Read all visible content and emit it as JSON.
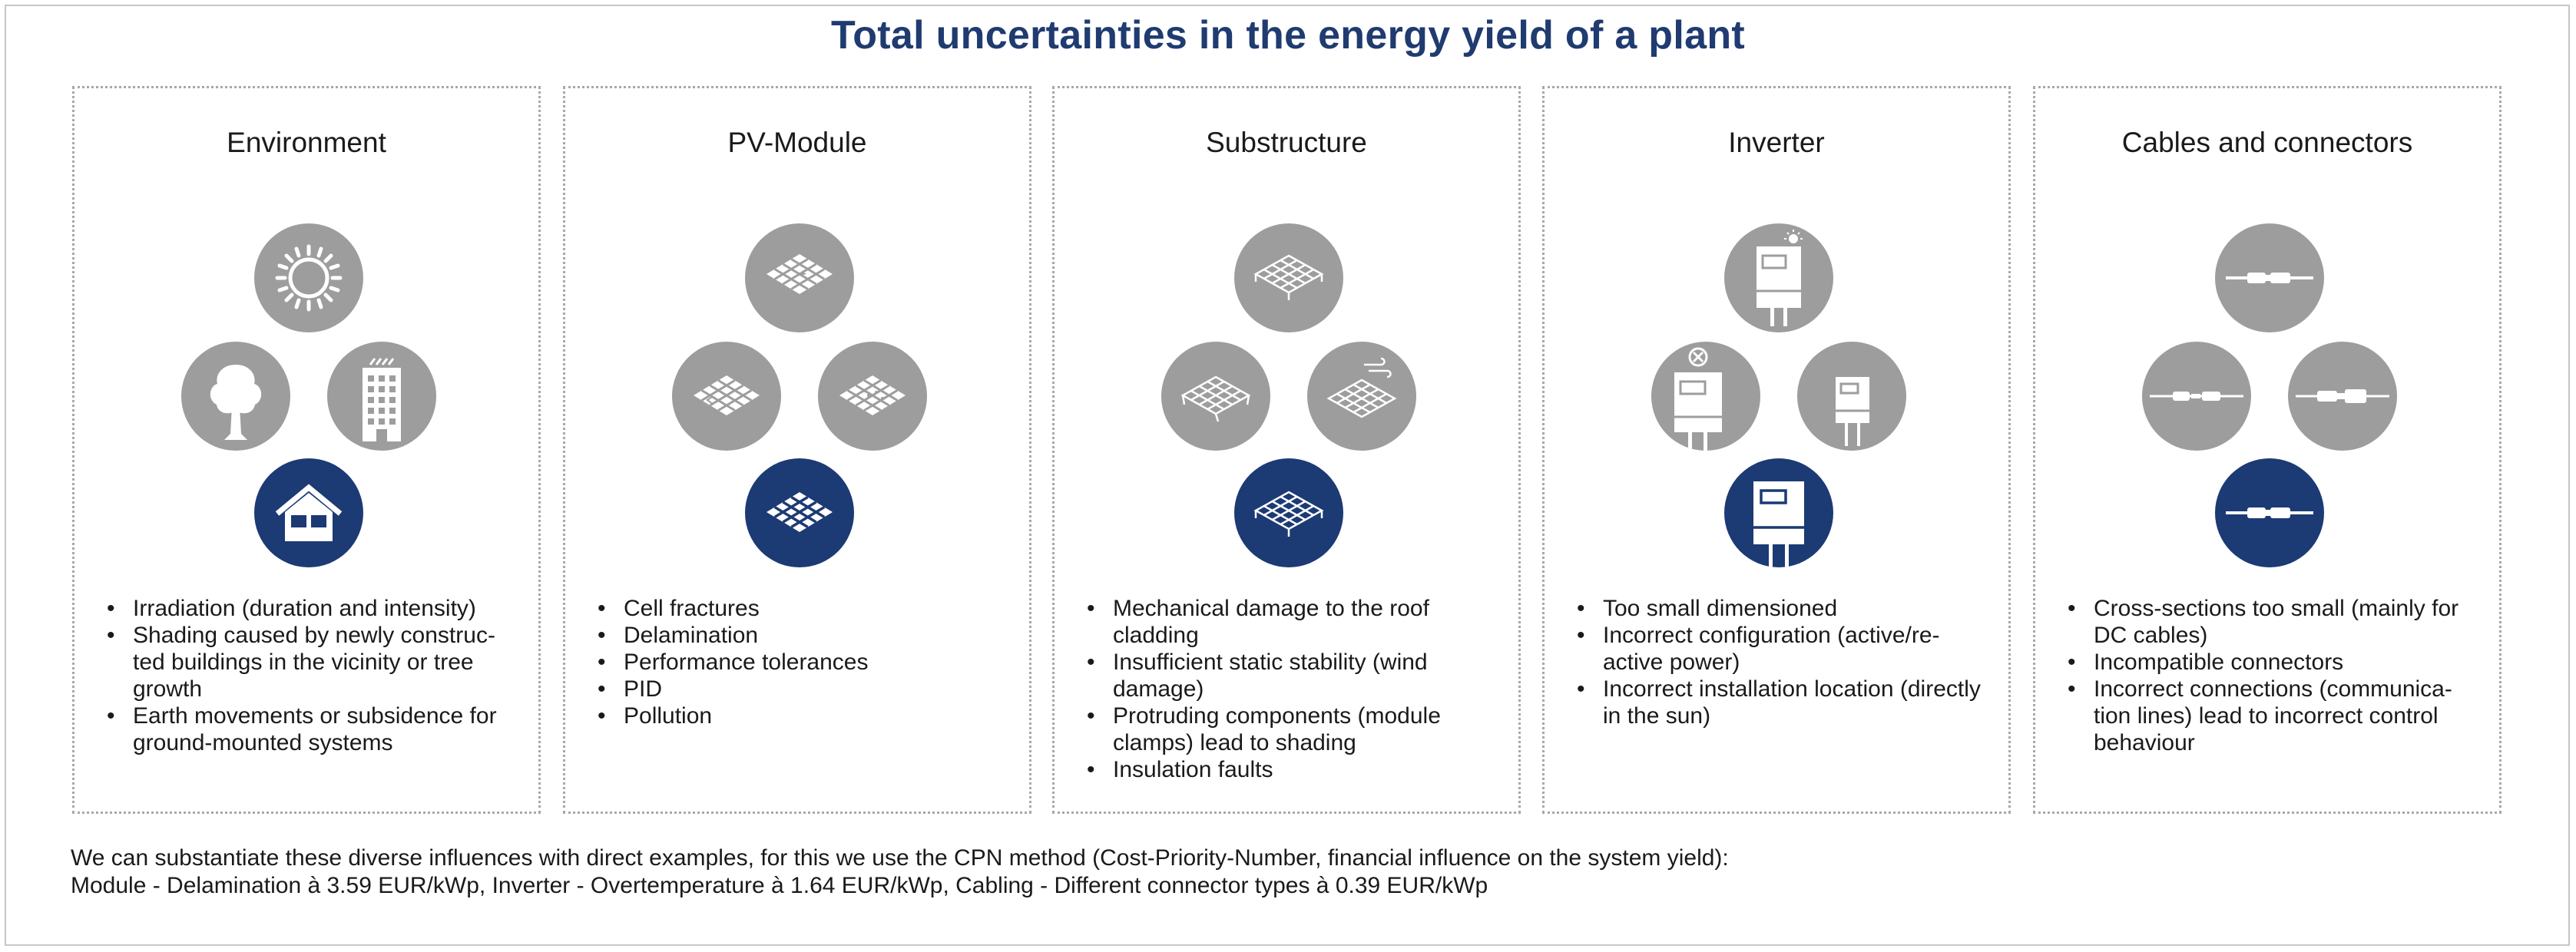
{
  "title": "Total uncertainties in the energy yield of a plant",
  "colors": {
    "title": "#1f3b70",
    "icon_gray": "#9d9d9d",
    "icon_blue": "#1c3a74"
  },
  "panels": [
    {
      "heading": "Environment",
      "icons": {
        "top": "sun-icon",
        "left": "tree-icon",
        "right": "building-icon",
        "bottom": "house-icon"
      },
      "bullets": [
        "Irradiation (duration and intensity)",
        "Shading caused by newly construc-ted buildings in the vicinity or tree growth",
        "Earth movements or subsidence for ground-mounted systems"
      ]
    },
    {
      "heading": "PV-Module",
      "icons": {
        "top": "damaged-module-icon",
        "left": "cracked-module-icon",
        "right": "soiled-module-icon",
        "bottom": "pv-module-icon"
      },
      "bullets": [
        "Cell fractures",
        "Delamination",
        "Performance tolerances",
        "PID",
        "Pollution"
      ]
    },
    {
      "heading": "Substructure",
      "icons": {
        "top": "mounting-frame-icon",
        "left": "damaged-frame-icon",
        "right": "wind-frame-icon",
        "bottom": "substructure-icon"
      },
      "bullets": [
        "Mechanical damage to the roof cladding",
        "Insufficient static stability (wind damage)",
        "Protruding components (module clamps) lead to shading",
        "Insulation faults"
      ]
    },
    {
      "heading": "Inverter",
      "icons": {
        "top": "inverter-sun-icon",
        "left": "inverter-error-icon",
        "right": "small-inverter-icon",
        "bottom": "inverter-icon"
      },
      "bullets": [
        "Too small dimensioned",
        "Incorrect configuration (active/re-active power)",
        "Incorrect installation location (directly in the sun)"
      ]
    },
    {
      "heading": "Cables and connectors",
      "icons": {
        "top": "connector-icon",
        "left": "cable-connector-icon",
        "right": "plug-connector-icon",
        "bottom": "connector-blue-icon"
      },
      "bullets": [
        "Cross-sections too small (mainly for DC cables)",
        "Incompatible connectors",
        "Incorrect connections (communica-tion lines) lead to incorrect control behaviour"
      ]
    }
  ],
  "footer": {
    "line1": "We can substantiate these diverse influences with direct examples, for this we use the CPN method (Cost-Priority-Number, financial influence on the system yield):",
    "line2": "Module - Delamination à 3.59 EUR/kWp, Inverter - Overtemperature à 1.64 EUR/kWp, Cabling - Different connector types à 0.39 EUR/kWp"
  }
}
